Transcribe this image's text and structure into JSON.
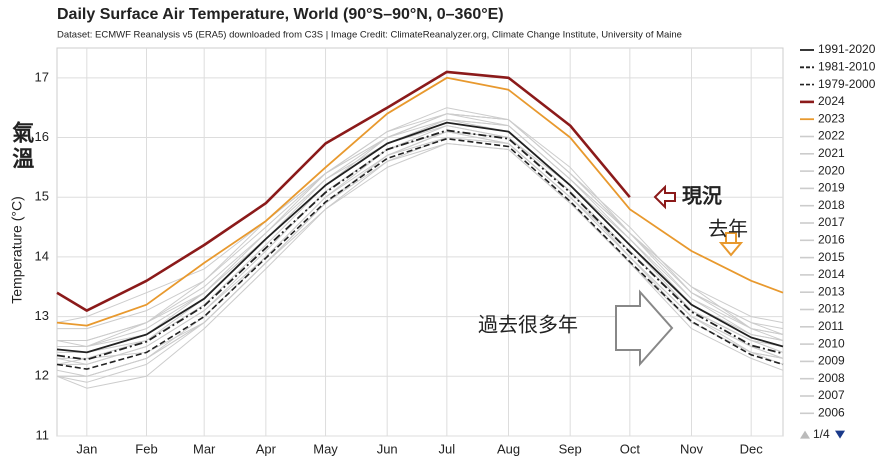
{
  "chart_data": {
    "type": "line",
    "title": "Daily Surface Air Temperature, World (90°S–90°N, 0–360°E)",
    "subtitle": "Dataset: ECMWF Reanalysis v5 (ERA5) downloaded from C3S | Image Credit: ClimateReanalyzer.org, Climate Change Institute, University of Maine",
    "y_label": "Temperature (°C)",
    "x": [
      1,
      16,
      46,
      75,
      106,
      136,
      167,
      197,
      228,
      259,
      289,
      320,
      350,
      366
    ],
    "xlim": [
      1,
      366
    ],
    "xticks": [
      {
        "value": 16,
        "label": "Jan"
      },
      {
        "value": 46,
        "label": "Feb"
      },
      {
        "value": 75,
        "label": "Mar"
      },
      {
        "value": 106,
        "label": "Apr"
      },
      {
        "value": 136,
        "label": "May"
      },
      {
        "value": 167,
        "label": "Jun"
      },
      {
        "value": 197,
        "label": "Jul"
      },
      {
        "value": 228,
        "label": "Aug"
      },
      {
        "value": 259,
        "label": "Sep"
      },
      {
        "value": 289,
        "label": "Oct"
      },
      {
        "value": 320,
        "label": "Nov"
      },
      {
        "value": 350,
        "label": "Dec"
      }
    ],
    "ylim": [
      11,
      17.5
    ],
    "yticks": [
      11,
      12,
      13,
      14,
      15,
      16,
      17
    ],
    "grid": true,
    "legend_position": "right",
    "legend_page": "1/4",
    "series": [
      {
        "name": "1991-2020",
        "color": "#222222",
        "line_style": "solid",
        "values": [
          12.45,
          12.4,
          12.7,
          13.3,
          14.3,
          15.2,
          15.9,
          16.25,
          16.1,
          15.2,
          14.2,
          13.2,
          12.65,
          12.5
        ]
      },
      {
        "name": "1981-2010",
        "color": "#222222",
        "line_style": "dashdot",
        "values": [
          12.35,
          12.28,
          12.58,
          13.18,
          14.15,
          15.08,
          15.8,
          16.12,
          15.98,
          15.08,
          14.08,
          13.08,
          12.52,
          12.38
        ]
      },
      {
        "name": "1979-2000",
        "color": "#222222",
        "line_style": "dashed",
        "values": [
          12.2,
          12.12,
          12.4,
          13.0,
          13.98,
          14.92,
          15.65,
          15.98,
          15.85,
          14.93,
          13.92,
          12.92,
          12.36,
          12.2
        ]
      },
      {
        "name": "2024",
        "color": "#8b1a1a",
        "line_style": "bold",
        "values": [
          13.4,
          13.1,
          13.6,
          14.2,
          14.9,
          15.9,
          16.5,
          17.1,
          17.0,
          16.2,
          15.0,
          null,
          null,
          null
        ]
      },
      {
        "name": "2023",
        "color": "#e8992e",
        "line_style": "solid",
        "values": [
          12.9,
          12.85,
          13.2,
          13.9,
          14.6,
          15.5,
          16.4,
          17.0,
          16.8,
          16.0,
          14.8,
          14.1,
          13.6,
          13.4
        ]
      },
      {
        "name": "2022",
        "color": "#cccccc",
        "line_style": "thin",
        "values": [
          12.6,
          12.5,
          12.9,
          13.4,
          14.4,
          15.4,
          16.0,
          16.4,
          16.3,
          15.4,
          14.4,
          13.4,
          12.8,
          12.7
        ]
      },
      {
        "name": "2021",
        "color": "#cccccc",
        "line_style": "thin",
        "values": [
          12.5,
          12.5,
          12.7,
          13.4,
          14.3,
          15.3,
          16.0,
          16.4,
          16.2,
          15.3,
          14.4,
          13.3,
          12.8,
          12.6
        ]
      },
      {
        "name": "2020",
        "color": "#cccccc",
        "line_style": "thin",
        "values": [
          12.8,
          12.8,
          13.1,
          13.6,
          14.6,
          15.4,
          16.1,
          16.4,
          16.3,
          15.5,
          14.4,
          13.5,
          12.8,
          12.7
        ]
      },
      {
        "name": "2019",
        "color": "#cccccc",
        "line_style": "thin",
        "values": [
          12.6,
          12.6,
          12.9,
          13.6,
          14.5,
          15.4,
          16.1,
          16.5,
          16.3,
          15.4,
          14.5,
          13.4,
          12.9,
          12.8
        ]
      },
      {
        "name": "2018",
        "color": "#cccccc",
        "line_style": "thin",
        "values": [
          12.4,
          12.4,
          12.6,
          13.3,
          14.3,
          15.2,
          16.0,
          16.3,
          16.1,
          15.2,
          14.3,
          13.2,
          12.7,
          12.6
        ]
      },
      {
        "name": "2017",
        "color": "#cccccc",
        "line_style": "thin",
        "values": [
          12.6,
          12.6,
          12.9,
          13.5,
          14.4,
          15.3,
          15.9,
          16.3,
          16.2,
          15.3,
          14.3,
          13.3,
          12.7,
          12.6
        ]
      },
      {
        "name": "2016",
        "color": "#cccccc",
        "line_style": "thin",
        "values": [
          12.9,
          13.0,
          13.4,
          13.8,
          14.6,
          15.4,
          16.0,
          16.4,
          16.3,
          15.4,
          14.4,
          13.4,
          12.9,
          12.7
        ]
      },
      {
        "name": "2015",
        "color": "#cccccc",
        "line_style": "thin",
        "values": [
          12.3,
          12.3,
          12.6,
          13.2,
          14.2,
          15.2,
          15.9,
          16.3,
          16.2,
          15.3,
          14.4,
          13.5,
          13.0,
          12.9
        ]
      },
      {
        "name": "2014",
        "color": "#cccccc",
        "line_style": "thin",
        "values": [
          12.3,
          12.2,
          12.5,
          13.1,
          14.1,
          15.1,
          15.8,
          16.2,
          16.0,
          15.2,
          14.2,
          13.1,
          12.6,
          12.5
        ]
      },
      {
        "name": "2013",
        "color": "#cccccc",
        "line_style": "thin",
        "values": [
          12.2,
          12.2,
          12.5,
          13.1,
          14.0,
          15.0,
          15.8,
          16.1,
          15.9,
          15.0,
          14.1,
          13.1,
          12.6,
          12.4
        ]
      },
      {
        "name": "2012",
        "color": "#cccccc",
        "line_style": "thin",
        "values": [
          12.0,
          12.0,
          12.3,
          13.0,
          14.0,
          15.0,
          15.7,
          16.1,
          15.9,
          15.0,
          14.0,
          13.0,
          12.5,
          12.3
        ]
      },
      {
        "name": "2011",
        "color": "#cccccc",
        "line_style": "thin",
        "values": [
          12.0,
          11.9,
          12.2,
          12.9,
          13.9,
          14.9,
          15.7,
          16.0,
          15.9,
          15.0,
          14.0,
          12.9,
          12.4,
          12.3
        ]
      },
      {
        "name": "2010",
        "color": "#cccccc",
        "line_style": "thin",
        "values": [
          12.5,
          12.5,
          12.8,
          13.4,
          14.3,
          15.2,
          15.9,
          16.2,
          16.0,
          15.1,
          14.0,
          13.0,
          12.4,
          12.3
        ]
      },
      {
        "name": "2009",
        "color": "#cccccc",
        "line_style": "thin",
        "values": [
          12.1,
          12.0,
          12.3,
          12.9,
          13.9,
          14.9,
          15.7,
          16.1,
          16.0,
          15.1,
          14.1,
          13.1,
          12.6,
          12.5
        ]
      },
      {
        "name": "2008",
        "color": "#cccccc",
        "line_style": "thin",
        "values": [
          12.0,
          11.8,
          12.0,
          12.8,
          13.8,
          14.8,
          15.5,
          15.9,
          15.8,
          14.9,
          13.9,
          12.9,
          12.4,
          12.2
        ]
      },
      {
        "name": "2007",
        "color": "#cccccc",
        "line_style": "thin",
        "values": [
          12.2,
          12.3,
          12.4,
          12.9,
          13.9,
          14.8,
          15.6,
          15.9,
          15.8,
          14.9,
          13.9,
          12.8,
          12.3,
          12.1
        ]
      },
      {
        "name": "2006",
        "color": "#cccccc",
        "line_style": "thin",
        "values": [
          12.0,
          12.0,
          12.3,
          12.9,
          13.9,
          14.9,
          15.6,
          16.0,
          15.9,
          15.0,
          14.0,
          13.0,
          12.5,
          12.3
        ]
      }
    ],
    "annotations": {
      "temperature": "氣溫",
      "current": "現況",
      "last_year": "去年",
      "past_years": "過去很多年"
    }
  }
}
